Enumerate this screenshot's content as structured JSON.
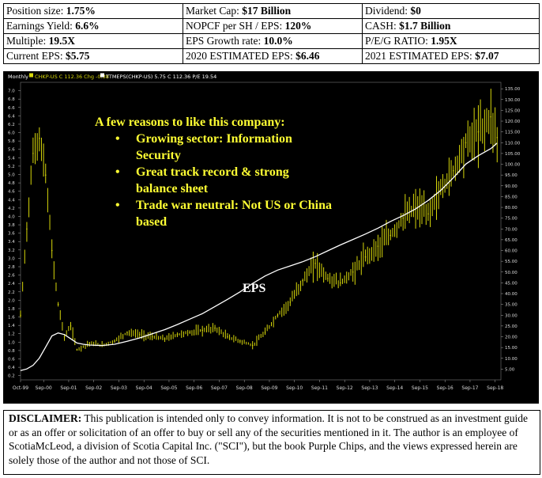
{
  "stats": {
    "rows": [
      [
        {
          "label": "Position size: ",
          "value": "1.75%"
        },
        {
          "label": "Market Cap: ",
          "value": "$17 Billion"
        },
        {
          "label": "Dividend: ",
          "value": "$0"
        }
      ],
      [
        {
          "label": "Earnings Yield: ",
          "value": "6.6%"
        },
        {
          "label": "NOPCF per SH / EPS: ",
          "value": "120%"
        },
        {
          "label": "CASH: ",
          "value": "$1.7 Billion"
        }
      ],
      [
        {
          "label": "Multiple: ",
          "value": "19.5X"
        },
        {
          "label": "EPS Growth rate: ",
          "value": "10.0%"
        },
        {
          "label": "P/E/G RATIO: ",
          "value": "1.95X"
        }
      ],
      [
        {
          "label": "Current EPS: ",
          "value": "$5.75"
        },
        {
          "label": "2020 ESTIMATED EPS: ",
          "value": "$6.46"
        },
        {
          "label": "2021 ESTIMATED EPS: ",
          "value": "$7.07"
        }
      ]
    ]
  },
  "chart_data": {
    "type": "line",
    "header": {
      "period": "Monthly",
      "price_legend": "CHKP-US C 112.36 Chg -0.38",
      "eps_legend": "TTMEPS(CHKP-US) 5.75 C 112.36 P/E 19.54"
    },
    "x_ticks": [
      "Oct-99",
      "Sep-00",
      "Sep-01",
      "Sep-02",
      "Sep-03",
      "Sep-04",
      "Sep-05",
      "Sep-06",
      "Sep-07",
      "Sep-08",
      "Sep-09",
      "Sep-10",
      "Sep-11",
      "Sep-12",
      "Sep-13",
      "Sep-14",
      "Sep-15",
      "Sep-16",
      "Sep-17",
      "Sep-18"
    ],
    "left_axis": {
      "ticks": [
        "0.2",
        "0.4",
        "0.6",
        "0.8",
        "1.0",
        "1.2",
        "1.4",
        "1.6",
        "1.8",
        "2.0",
        "2.2",
        "2.4",
        "2.6",
        "2.8",
        "3.0",
        "3.2",
        "3.4",
        "3.6",
        "3.8",
        "4.0",
        "4.2",
        "4.4",
        "4.6",
        "4.8",
        "5.0",
        "5.2",
        "5.4",
        "5.6",
        "5.8",
        "6.0",
        "6.2",
        "6.4",
        "6.6",
        "6.8",
        "7.0"
      ],
      "ylim": [
        0.1,
        7.2
      ]
    },
    "right_axis": {
      "ticks": [
        "5.00",
        "10.00",
        "15.00",
        "20.00",
        "25.00",
        "30.00",
        "35.00",
        "40.00",
        "45.00",
        "50.00",
        "55.00",
        "60.00",
        "65.00",
        "70.00",
        "75.00",
        "80.00",
        "85.00",
        "90.00",
        "95.00",
        "100.00",
        "105.00",
        "110.00",
        "115.00",
        "120.00",
        "125.00",
        "130.00",
        "135.00"
      ],
      "ylim": [
        0,
        138
      ]
    },
    "series": [
      {
        "name": "CHKP-US",
        "axis": "right",
        "color": "#d8d80a",
        "x": [
          1999.75,
          2000.0,
          2000.25,
          2000.5,
          2000.75,
          2001.0,
          2001.25,
          2001.5,
          2001.75,
          2002.0,
          2002.5,
          2003.0,
          2003.5,
          2004.0,
          2004.5,
          2005.0,
          2005.5,
          2006.0,
          2006.5,
          2007.0,
          2007.5,
          2008.0,
          2008.5,
          2009.0,
          2009.5,
          2010.0,
          2010.5,
          2011.0,
          2011.5,
          2012.0,
          2012.5,
          2013.0,
          2013.5,
          2014.0,
          2014.5,
          2015.0,
          2015.5,
          2016.0,
          2016.5,
          2017.0,
          2017.5,
          2018.0,
          2018.5,
          2018.75
        ],
        "y": [
          30,
          70,
          105,
          112,
          95,
          60,
          35,
          20,
          25,
          14,
          17,
          16,
          18,
          22,
          21,
          20,
          19,
          21,
          22,
          23,
          24,
          20,
          18,
          16,
          22,
          30,
          36,
          46,
          54,
          47,
          45,
          50,
          57,
          62,
          67,
          75,
          80,
          77,
          88,
          97,
          110,
          115,
          122,
          112.36
        ]
      },
      {
        "name": "TTMEPS(CHKP-US)",
        "axis": "left",
        "color": "#ffffff",
        "x": [
          1999.75,
          2000.0,
          2000.25,
          2000.5,
          2000.75,
          2001.0,
          2001.25,
          2001.5,
          2001.75,
          2002.0,
          2002.25,
          2002.5,
          2003.0,
          2003.5,
          2004.0,
          2004.5,
          2005.0,
          2005.5,
          2006.0,
          2006.5,
          2007.0,
          2007.5,
          2008.0,
          2008.5,
          2009.0,
          2009.5,
          2010.0,
          2010.5,
          2011.0,
          2011.5,
          2012.0,
          2012.5,
          2013.0,
          2013.5,
          2014.0,
          2014.5,
          2015.0,
          2015.5,
          2016.0,
          2016.5,
          2017.0,
          2017.5,
          2018.0,
          2018.5,
          2018.75
        ],
        "y": [
          0.32,
          0.36,
          0.45,
          0.62,
          0.88,
          1.15,
          1.22,
          1.18,
          1.08,
          0.98,
          0.95,
          0.93,
          0.92,
          0.95,
          1.02,
          1.1,
          1.2,
          1.3,
          1.42,
          1.55,
          1.68,
          1.85,
          2.02,
          2.2,
          2.4,
          2.58,
          2.72,
          2.82,
          2.92,
          3.04,
          3.18,
          3.32,
          3.45,
          3.58,
          3.72,
          3.88,
          4.02,
          4.18,
          4.38,
          4.62,
          4.92,
          5.25,
          5.45,
          5.62,
          5.75
        ]
      }
    ],
    "annotations": {
      "callout_title": "A few reasons to like this company:",
      "callout_items": [
        "Growing sector: Information Security",
        "Great track record & strong balance sheet",
        "Trade war neutral: Not US or China based"
      ],
      "eps_label": "EPS"
    }
  },
  "disclaimer": {
    "label": "DISCLAIMER:",
    "text": " This publication is intended only to convey information.  It is not to be construed as an investment guide or as an offer or solicitation of an offer to buy or sell any of the securities mentioned in it. The author is an employee of ScotiaMcLeod, a division of Scotia Capital Inc. (\"SCI\"), but the book Purple Chips, and the views expressed herein are solely those of the author and not those of SCI."
  }
}
